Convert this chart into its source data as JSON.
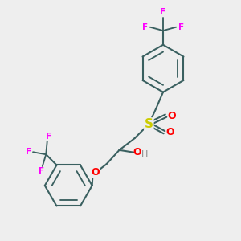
{
  "bg_color": "#eeeeee",
  "bond_color": "#3a6060",
  "S_color": "#cccc00",
  "O_color": "#ff0000",
  "F_color": "#ff00ff",
  "H_color": "#888888",
  "line_width": 1.5,
  "fig_w": 3.0,
  "fig_h": 3.0,
  "dpi": 100,
  "xlim": [
    0,
    10
  ],
  "ylim": [
    0,
    10
  ]
}
